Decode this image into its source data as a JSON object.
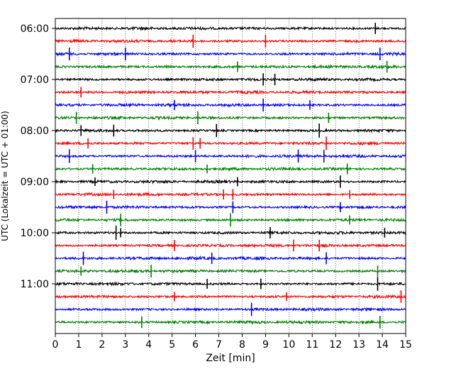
{
  "chart_data": {
    "type": "line",
    "title": "",
    "xlabel": "Zeit  [min]",
    "ylabel": "UTC (Lokalzeit = UTC + 01:00)",
    "xlim": [
      0,
      15
    ],
    "x_ticks": [
      "0",
      "1",
      "2",
      "3",
      "4",
      "5",
      "6",
      "7",
      "8",
      "9",
      "10",
      "11",
      "12",
      "13",
      "14",
      "15"
    ],
    "y_ticks": [
      "06:00",
      "07:00",
      "08:00",
      "09:00",
      "10:00",
      "11:00"
    ],
    "grid": "vertical dotted at each minute",
    "row_duration_minutes": 15,
    "color_cycle": [
      "#000000",
      "#ff0000",
      "#0000ff",
      "#008000"
    ],
    "series": [
      {
        "start": "06:00",
        "color": "#000000",
        "spikes": [
          13.7
        ]
      },
      {
        "start": "06:15",
        "color": "#ff0000",
        "spikes": [
          9.0,
          5.9
        ]
      },
      {
        "start": "06:30",
        "color": "#0000ff",
        "spikes": [
          0.6,
          3.0,
          13.9
        ]
      },
      {
        "start": "06:45",
        "color": "#008000",
        "spikes": [
          7.8,
          14.2
        ]
      },
      {
        "start": "07:00",
        "color": "#000000",
        "spikes": [
          8.9,
          9.4
        ]
      },
      {
        "start": "07:15",
        "color": "#ff0000",
        "spikes": [
          1.1
        ]
      },
      {
        "start": "07:30",
        "color": "#0000ff",
        "spikes": [
          5.1,
          8.9,
          10.9
        ]
      },
      {
        "start": "07:45",
        "color": "#008000",
        "spikes": [
          0.9,
          6.1,
          11.7
        ]
      },
      {
        "start": "08:00",
        "color": "#000000",
        "spikes": [
          1.1,
          2.5,
          6.9,
          11.3
        ]
      },
      {
        "start": "08:15",
        "color": "#ff0000",
        "spikes": [
          1.4,
          5.9,
          6.2,
          11.6
        ]
      },
      {
        "start": "08:30",
        "color": "#0000ff",
        "spikes": [
          0.6,
          6.0,
          10.4,
          11.5
        ]
      },
      {
        "start": "08:45",
        "color": "#008000",
        "spikes": [
          1.6,
          6.5,
          12.5
        ]
      },
      {
        "start": "09:00",
        "color": "#000000",
        "spikes": [
          1.7,
          7.8,
          12.2
        ]
      },
      {
        "start": "09:15",
        "color": "#ff0000",
        "spikes": [
          2.5,
          7.2,
          7.6,
          12.6
        ]
      },
      {
        "start": "09:30",
        "color": "#0000ff",
        "spikes": [
          2.2,
          7.6,
          12.2
        ]
      },
      {
        "start": "09:45",
        "color": "#008000",
        "spikes": [
          2.8,
          7.5,
          12.6
        ]
      },
      {
        "start": "10:00",
        "color": "#000000",
        "spikes": [
          2.6,
          2.8,
          9.2,
          14.1
        ]
      },
      {
        "start": "10:15",
        "color": "#ff0000",
        "spikes": [
          5.1,
          10.2,
          11.3
        ]
      },
      {
        "start": "10:30",
        "color": "#0000ff",
        "spikes": [
          1.2,
          6.7,
          11.6
        ]
      },
      {
        "start": "10:45",
        "color": "#008000",
        "spikes": [
          1.1,
          4.1,
          13.8
        ]
      },
      {
        "start": "11:00",
        "color": "#000000",
        "spikes": [
          6.5,
          8.8,
          13.8
        ]
      },
      {
        "start": "11:15",
        "color": "#ff0000",
        "spikes": [
          5.1,
          9.9,
          14.8
        ]
      },
      {
        "start": "11:30",
        "color": "#0000ff",
        "spikes": [
          8.4
        ]
      },
      {
        "start": "11:45",
        "color": "#008000",
        "spikes": [
          3.7,
          13.9
        ]
      }
    ]
  }
}
